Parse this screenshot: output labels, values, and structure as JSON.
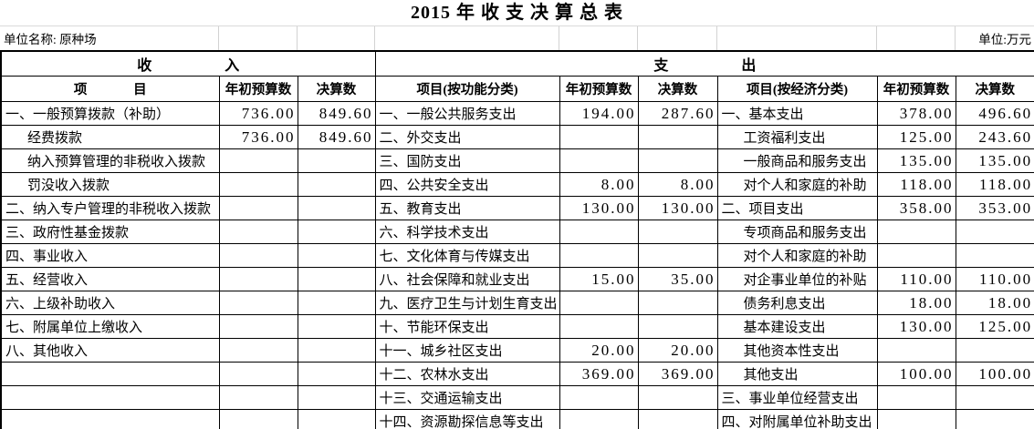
{
  "title": "2015 年 收 支 决 算 总 表",
  "meta": {
    "unit_name_label": "单位名称: 原种场",
    "unit_label": "单位:万元"
  },
  "colors": {
    "background": "#ffffff",
    "text": "#000000",
    "table_border": "#000000",
    "gridline": "#d2d2d2"
  },
  "table": {
    "section_headers": {
      "income": "收                    入",
      "expense": "支                    出"
    },
    "column_headers": {
      "income_item": "项              目",
      "budget": "年初预算数",
      "final": "决算数",
      "func_item": "项目(按功能分类)",
      "econ_item": "项目(按经济分类)"
    },
    "rows": [
      {
        "income": {
          "item": "一、一般预算拨款（补助）",
          "indent": false,
          "budget": "736.00",
          "final": "849.60"
        },
        "func": {
          "item": "一、一般公共服务支出",
          "budget": "194.00",
          "final": "287.60"
        },
        "econ": {
          "item": "一、基本支出",
          "indent": false,
          "budget": "378.00",
          "final": "496.60"
        }
      },
      {
        "income": {
          "item": "经费拨款",
          "indent": true,
          "budget": "736.00",
          "final": "849.60"
        },
        "func": {
          "item": "二、外交支出",
          "budget": "",
          "final": ""
        },
        "econ": {
          "item": "工资福利支出",
          "indent": true,
          "budget": "125.00",
          "final": "243.60"
        }
      },
      {
        "income": {
          "item": "纳入预算管理的非税收入拨款",
          "indent": true,
          "budget": "",
          "final": ""
        },
        "func": {
          "item": "三、国防支出",
          "budget": "",
          "final": ""
        },
        "econ": {
          "item": "一般商品和服务支出",
          "indent": true,
          "budget": "135.00",
          "final": "135.00"
        }
      },
      {
        "income": {
          "item": "罚没收入拨款",
          "indent": true,
          "budget": "",
          "final": ""
        },
        "func": {
          "item": "四、公共安全支出",
          "budget": "8.00",
          "final": "8.00"
        },
        "econ": {
          "item": "对个人和家庭的补助",
          "indent": true,
          "budget": "118.00",
          "final": "118.00"
        }
      },
      {
        "income": {
          "item": "二、纳入专户管理的非税收入拨款",
          "indent": false,
          "budget": "",
          "final": ""
        },
        "func": {
          "item": "五、教育支出",
          "budget": "130.00",
          "final": "130.00"
        },
        "econ": {
          "item": "二、项目支出",
          "indent": false,
          "budget": "358.00",
          "final": "353.00"
        }
      },
      {
        "income": {
          "item": "三、政府性基金拨款",
          "indent": false,
          "budget": "",
          "final": ""
        },
        "func": {
          "item": "六、科学技术支出",
          "budget": "",
          "final": ""
        },
        "econ": {
          "item": "专项商品和服务支出",
          "indent": true,
          "budget": "",
          "final": ""
        }
      },
      {
        "income": {
          "item": "四、事业收入",
          "indent": false,
          "budget": "",
          "final": ""
        },
        "func": {
          "item": "七、文化体育与传媒支出",
          "budget": "",
          "final": ""
        },
        "econ": {
          "item": "对个人和家庭的补助",
          "indent": true,
          "budget": "",
          "final": ""
        }
      },
      {
        "income": {
          "item": "五、经营收入",
          "indent": false,
          "budget": "",
          "final": ""
        },
        "func": {
          "item": "八、社会保障和就业支出",
          "budget": "15.00",
          "final": "35.00"
        },
        "econ": {
          "item": "对企事业单位的补贴",
          "indent": true,
          "budget": "110.00",
          "final": "110.00"
        }
      },
      {
        "income": {
          "item": "六、上级补助收入",
          "indent": false,
          "budget": "",
          "final": ""
        },
        "func": {
          "item": "九、医疗卫生与计划生育支出",
          "budget": "",
          "final": ""
        },
        "econ": {
          "item": "债务利息支出",
          "indent": true,
          "budget": "18.00",
          "final": "18.00"
        }
      },
      {
        "income": {
          "item": "七、附属单位上缴收入",
          "indent": false,
          "budget": "",
          "final": ""
        },
        "func": {
          "item": "十、节能环保支出",
          "budget": "",
          "final": ""
        },
        "econ": {
          "item": "基本建设支出",
          "indent": true,
          "budget": "130.00",
          "final": "125.00"
        }
      },
      {
        "income": {
          "item": "八、其他收入",
          "indent": false,
          "budget": "",
          "final": ""
        },
        "func": {
          "item": "十一、城乡社区支出",
          "budget": "20.00",
          "final": "20.00"
        },
        "econ": {
          "item": "其他资本性支出",
          "indent": true,
          "budget": "",
          "final": ""
        }
      },
      {
        "income": {
          "item": "",
          "indent": false,
          "budget": "",
          "final": ""
        },
        "func": {
          "item": "十二、农林水支出",
          "budget": "369.00",
          "final": "369.00"
        },
        "econ": {
          "item": "其他支出",
          "indent": true,
          "budget": "100.00",
          "final": "100.00"
        }
      },
      {
        "income": {
          "item": "",
          "indent": false,
          "budget": "",
          "final": ""
        },
        "func": {
          "item": "十三、交通运输支出",
          "budget": "",
          "final": ""
        },
        "econ": {
          "item": "三、事业单位经营支出",
          "indent": false,
          "budget": "",
          "final": ""
        }
      },
      {
        "income": {
          "item": "",
          "indent": false,
          "budget": "",
          "final": ""
        },
        "func": {
          "item": "十四、资源勘探信息等支出",
          "budget": "",
          "final": ""
        },
        "econ": {
          "item": "四、对附属单位补助支出",
          "indent": false,
          "budget": "",
          "final": ""
        }
      }
    ]
  }
}
